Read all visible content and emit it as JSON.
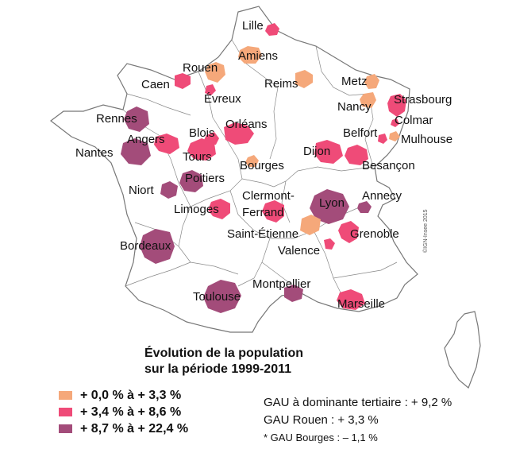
{
  "credit": "©IGN-Insee 2015",
  "title_line1": "Évolution de la population",
  "title_line2": "sur la période 1999-2011",
  "legend": [
    {
      "label": "+ 0,0 % à + 3,3 %",
      "color": "#f5a87a"
    },
    {
      "label": "+ 3,4 % à + 8,6 %",
      "color": "#ef4b78"
    },
    {
      "label": "+ 8,7 % à + 22,4 %",
      "color": "#a34c7a"
    }
  ],
  "notes": [
    "GAU à dominante tertiaire : + 9,2 %",
    "GAU Rouen : + 3,3 %",
    "* GAU Bourges : – 1,1 %"
  ],
  "cities": [
    {
      "name": "Lille",
      "class": 2
    },
    {
      "name": "Amiens",
      "class": 1
    },
    {
      "name": "Rouen",
      "class": 1
    },
    {
      "name": "Caen",
      "class": 2
    },
    {
      "name": "Évreux",
      "class": 2
    },
    {
      "name": "Reims",
      "class": 1
    },
    {
      "name": "Metz",
      "class": 1
    },
    {
      "name": "Nancy",
      "class": 1
    },
    {
      "name": "Strasbourg",
      "class": 2
    },
    {
      "name": "Colmar",
      "class": 2
    },
    {
      "name": "Mulhouse",
      "class": 1
    },
    {
      "name": "Belfort",
      "class": 2
    },
    {
      "name": "Rennes",
      "class": 3
    },
    {
      "name": "Angers",
      "class": 2
    },
    {
      "name": "Nantes",
      "class": 3
    },
    {
      "name": "Blois",
      "class": 2
    },
    {
      "name": "Orléans",
      "class": 2
    },
    {
      "name": "Tours",
      "class": 2
    },
    {
      "name": "Dijon",
      "class": 2
    },
    {
      "name": "Besançon",
      "class": 2
    },
    {
      "name": "Bourges",
      "class": 1
    },
    {
      "name": "Poitiers",
      "class": 3
    },
    {
      "name": "Niort",
      "class": 3
    },
    {
      "name": "Limoges",
      "class": 2
    },
    {
      "name": "Clermont-",
      "class": 2
    },
    {
      "name": "Ferrand",
      "class": 2
    },
    {
      "name": "Lyon",
      "class": 3
    },
    {
      "name": "Annecy",
      "class": 3
    },
    {
      "name": "Saint-Étienne",
      "class": 1
    },
    {
      "name": "Grenoble",
      "class": 2
    },
    {
      "name": "Valence",
      "class": 2
    },
    {
      "name": "Bordeaux",
      "class": 3
    },
    {
      "name": "Toulouse",
      "class": 3
    },
    {
      "name": "Montpellier",
      "class": 3
    },
    {
      "name": "Marseille",
      "class": 2
    }
  ]
}
